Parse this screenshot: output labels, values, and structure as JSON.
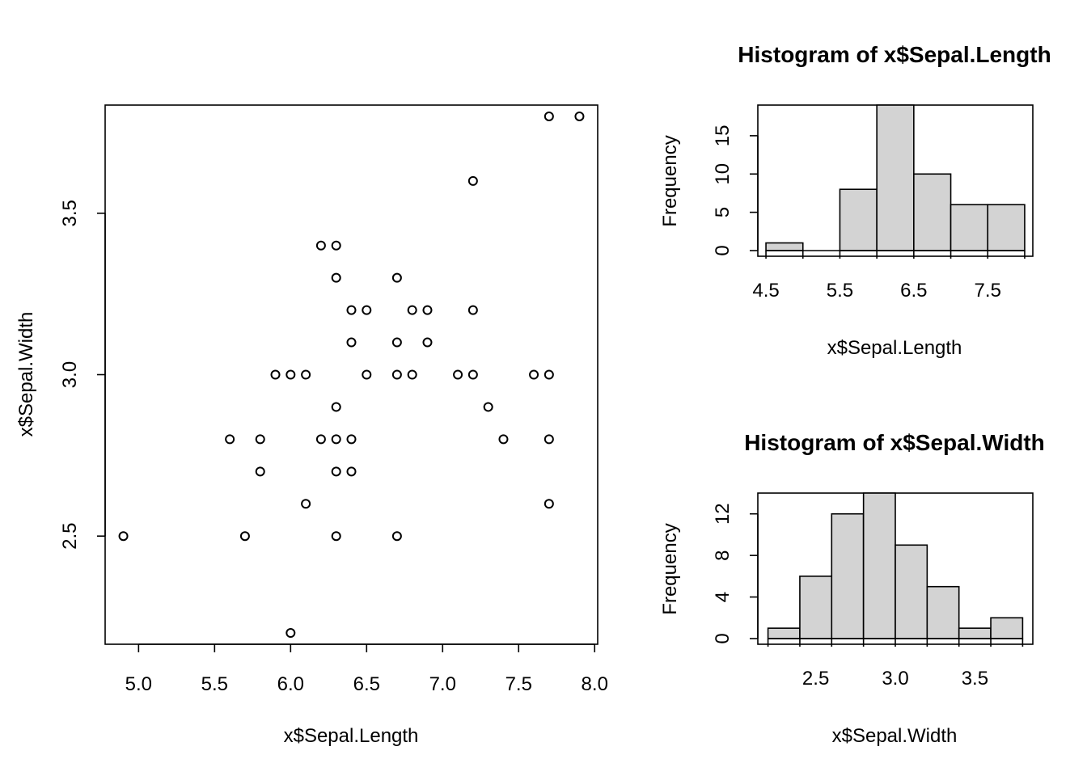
{
  "chart_data": [
    {
      "type": "scatter",
      "xlabel": "x$Sepal.Length",
      "ylabel": "x$Sepal.Width",
      "xlim": [
        4.78,
        8.02
      ],
      "ylim": [
        2.165,
        3.835
      ],
      "xticks": [
        "5.0",
        "5.5",
        "6.0",
        "6.5",
        "7.0",
        "7.5",
        "8.0"
      ],
      "yticks": [
        "2.5",
        "3.0",
        "3.5"
      ],
      "points": [
        [
          4.9,
          2.5
        ],
        [
          5.6,
          2.8
        ],
        [
          5.7,
          2.5
        ],
        [
          5.8,
          2.8
        ],
        [
          5.8,
          2.7
        ],
        [
          5.9,
          3.0
        ],
        [
          6.0,
          3.0
        ],
        [
          6.0,
          2.2
        ],
        [
          6.1,
          3.0
        ],
        [
          6.1,
          2.6
        ],
        [
          6.2,
          3.4
        ],
        [
          6.2,
          2.8
        ],
        [
          6.3,
          3.4
        ],
        [
          6.3,
          3.3
        ],
        [
          6.3,
          2.9
        ],
        [
          6.3,
          2.8
        ],
        [
          6.3,
          2.7
        ],
        [
          6.3,
          2.5
        ],
        [
          6.4,
          3.2
        ],
        [
          6.4,
          3.1
        ],
        [
          6.4,
          2.8
        ],
        [
          6.4,
          2.7
        ],
        [
          6.5,
          3.2
        ],
        [
          6.5,
          3.0
        ],
        [
          6.7,
          3.3
        ],
        [
          6.7,
          3.1
        ],
        [
          6.7,
          3.0
        ],
        [
          6.7,
          2.5
        ],
        [
          6.8,
          3.2
        ],
        [
          6.8,
          3.0
        ],
        [
          6.9,
          3.2
        ],
        [
          6.9,
          3.1
        ],
        [
          7.1,
          3.0
        ],
        [
          7.2,
          3.6
        ],
        [
          7.2,
          3.2
        ],
        [
          7.2,
          3.0
        ],
        [
          7.3,
          2.9
        ],
        [
          7.4,
          2.8
        ],
        [
          7.6,
          3.0
        ],
        [
          7.7,
          3.8
        ],
        [
          7.7,
          3.0
        ],
        [
          7.7,
          2.8
        ],
        [
          7.7,
          2.6
        ],
        [
          7.9,
          3.8
        ]
      ]
    },
    {
      "type": "bar",
      "title": "Histogram of x$Sepal.Length",
      "xlabel": "x$Sepal.Length",
      "ylabel": "Frequency",
      "breaks": [
        4.5,
        5.0,
        5.5,
        6.0,
        6.5,
        7.0,
        7.5,
        8.0
      ],
      "values": [
        1,
        0,
        8,
        19,
        10,
        6,
        6
      ],
      "xlim": [
        4.39,
        8.11
      ],
      "ylim": [
        0,
        19
      ],
      "xticks": [
        "4.5",
        "5.5",
        "6.5",
        "7.5"
      ],
      "yticks": [
        "0",
        "5",
        "10",
        "15"
      ]
    },
    {
      "type": "bar",
      "title": "Histogram of x$Sepal.Width",
      "xlabel": "x$Sepal.Width",
      "ylabel": "Frequency",
      "breaks": [
        2.2,
        2.4,
        2.6,
        2.8,
        3.0,
        3.2,
        3.4,
        3.6,
        3.8
      ],
      "values": [
        1,
        6,
        12,
        14,
        9,
        5,
        1,
        2
      ],
      "xlim": [
        2.136,
        3.864
      ],
      "ylim": [
        0,
        14
      ],
      "xticks": [
        "2.5",
        "3.0",
        "3.5"
      ],
      "yticks": [
        "0",
        "4",
        "8",
        "12"
      ]
    }
  ]
}
